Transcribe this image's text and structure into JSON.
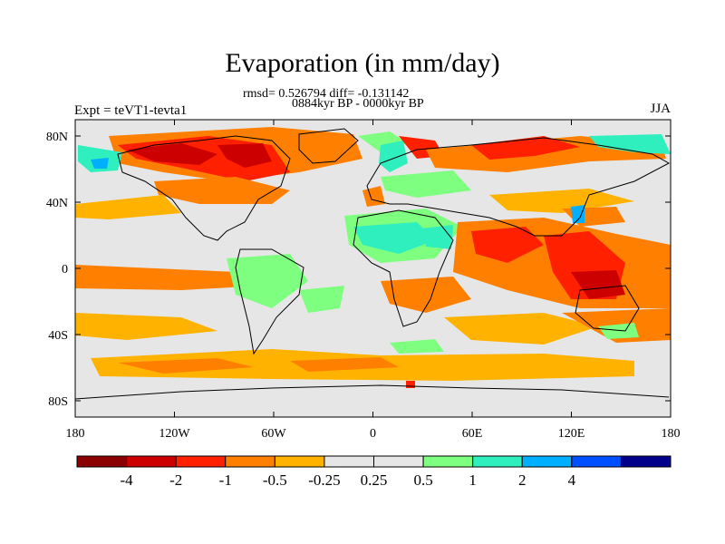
{
  "title": "Evaporation (in mm/day)",
  "stats_line": "rmsd= 0.526794 diff= -0.131142",
  "period_line": "0884kyr BP - 0000kyr BP",
  "experiment_label": "Expt = teVT1-tevta1",
  "season_label": "JJA",
  "axes": {
    "x_ticks": [
      "180",
      "120W",
      "60W",
      "0",
      "60E",
      "120E",
      "180"
    ],
    "y_ticks": [
      "80N",
      "40N",
      "0",
      "40S",
      "80S"
    ],
    "lon_range": [
      -180,
      180
    ],
    "lat_range": [
      -90,
      90
    ]
  },
  "colorbar": {
    "colors": [
      "#8b0000",
      "#cd0000",
      "#ff2000",
      "#ff7f00",
      "#ffb300",
      "#e6e6e6",
      "#e6e6e6",
      "#7fff7f",
      "#2fefbf",
      "#00b0ff",
      "#0050ff",
      "#00008b"
    ],
    "labels": [
      "-4",
      "-2",
      "-1",
      "-0.5",
      "-0.25",
      "0.25",
      "0.5",
      "1",
      "2",
      "4"
    ]
  },
  "background_color": "#e6e6e6"
}
